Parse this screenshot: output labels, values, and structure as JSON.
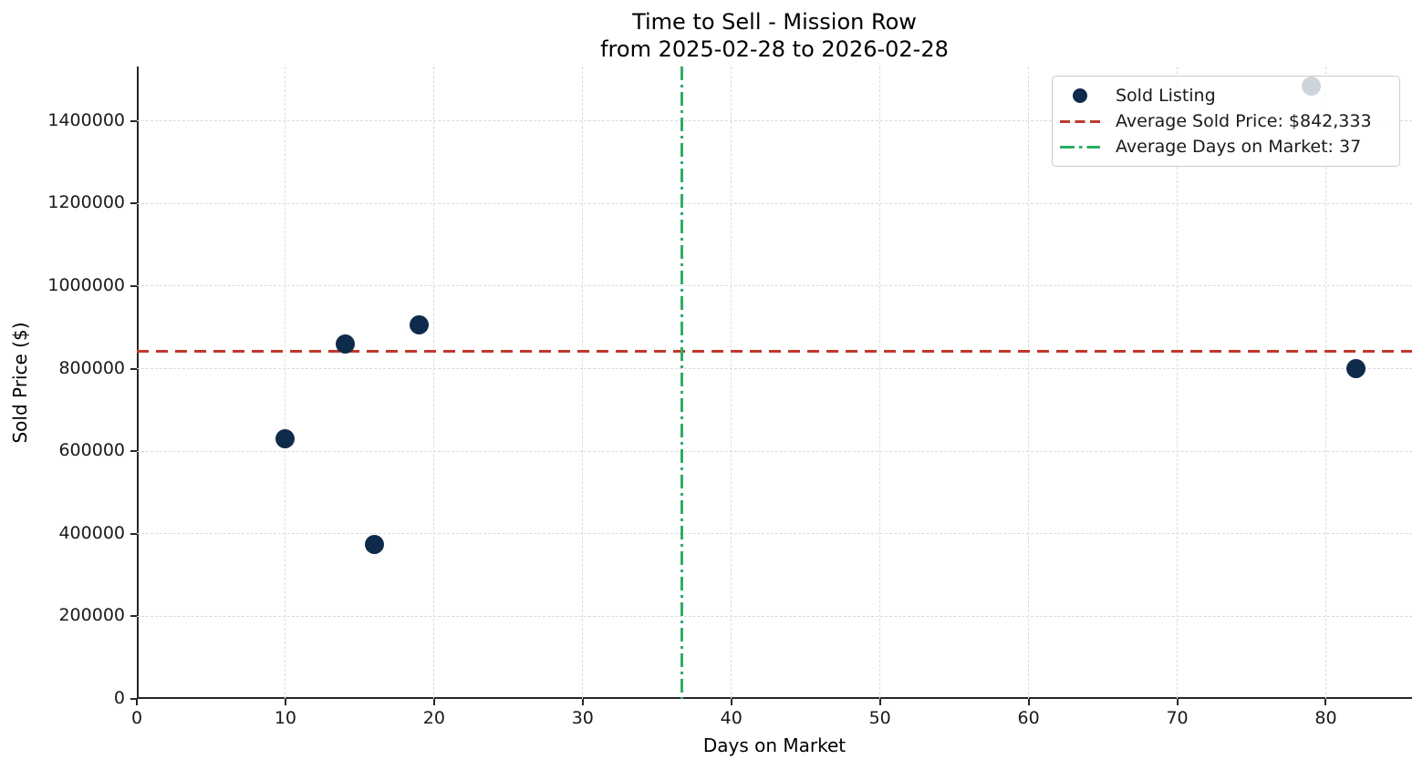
{
  "chart_data": {
    "type": "scatter",
    "title_lines": [
      "Time to Sell - Mission Row",
      "from 2025-02-28 to 2026-02-28"
    ],
    "xlabel": "Days on Market",
    "ylabel": "Sold Price ($)",
    "points": [
      {
        "days_on_market": 10,
        "sold_price": 630000
      },
      {
        "days_on_market": 14,
        "sold_price": 860000
      },
      {
        "days_on_market": 16,
        "sold_price": 375000
      },
      {
        "days_on_market": 19,
        "sold_price": 905000
      },
      {
        "days_on_market": 79,
        "sold_price": 1484000
      },
      {
        "days_on_market": 82,
        "sold_price": 800000
      }
    ],
    "avg_lines": {
      "average_sold_price": 842333,
      "average_days_on_market": 36.67
    },
    "xlim": [
      0,
      85.8
    ],
    "ylim": [
      0,
      1531650
    ],
    "x_ticks": [
      0,
      10,
      20,
      30,
      40,
      50,
      60,
      70,
      80
    ],
    "y_ticks": [
      0,
      200000,
      400000,
      600000,
      800000,
      1000000,
      1200000,
      1400000
    ],
    "grid": true,
    "legend_position": "upper right",
    "legend": {
      "items": [
        {
          "label": "Sold Listing",
          "marker": "circle-marker"
        },
        {
          "label": "Average Sold Price: $842,333",
          "marker": "dashed-line-marker"
        },
        {
          "label": "Average Days on Market: 37",
          "marker": "dashdot-line-marker"
        }
      ]
    },
    "colors": {
      "sold_listing": "#0F2B4C",
      "avg_price_line": "#C0392B",
      "avg_days_line": "#2FAD63",
      "grid": "#DCDCDC",
      "spine": "#262626"
    }
  }
}
